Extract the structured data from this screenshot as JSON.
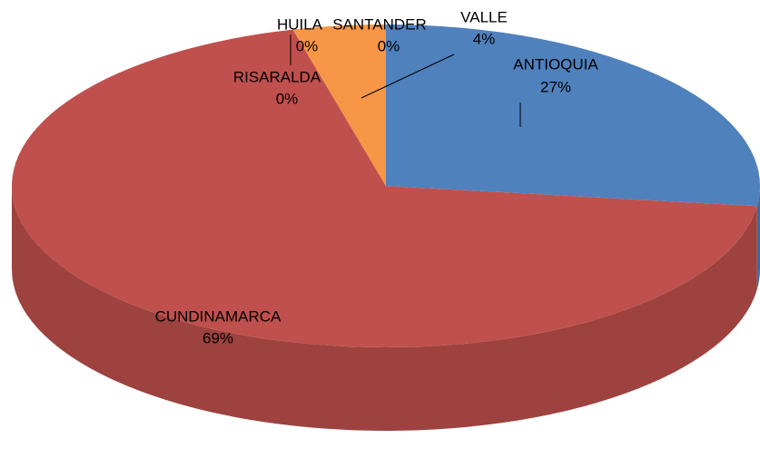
{
  "chart_data": {
    "type": "pie",
    "categories": [
      "ANTIOQUIA",
      "CUNDINAMARCA",
      "RISARALDA",
      "HUILA",
      "SANTANDER",
      "VALLE"
    ],
    "values": [
      27,
      69,
      0,
      0,
      0,
      4
    ],
    "value_labels": [
      "27%",
      "69%",
      "0%",
      "0%",
      "0%",
      "4%"
    ],
    "colors": [
      "#4f81bd",
      "#c0504d",
      "#8064a2",
      "#9bbb59",
      "#4bacc6",
      "#f79646"
    ]
  }
}
